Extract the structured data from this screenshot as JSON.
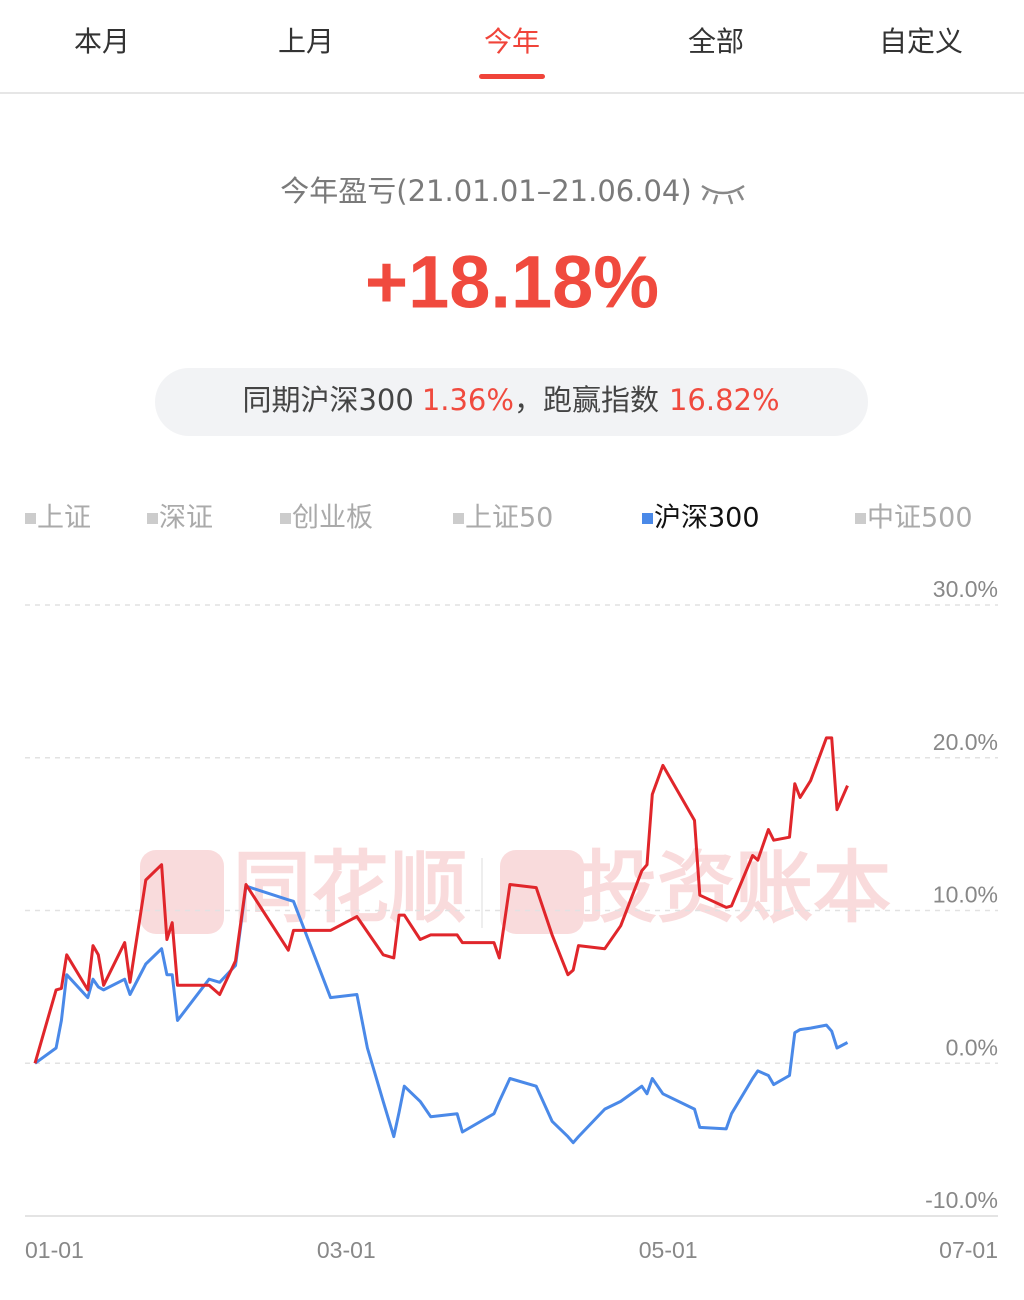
{
  "tabs": {
    "items": [
      "本月",
      "上月",
      "今年",
      "全部",
      "自定义"
    ],
    "active": 2
  },
  "header": {
    "period": "今年盈亏(21.01.01–21.06.04)",
    "return": "+18.18%",
    "compare_prefix": "同期沪深300",
    "compare_value": "1.36%",
    "compare_middle": "，跑赢指数",
    "excess_value": "16.82%"
  },
  "legend": [
    {
      "label": "上证",
      "color": "#cccccc",
      "active": false
    },
    {
      "label": "深证",
      "color": "#cccccc",
      "active": false
    },
    {
      "label": "创业板",
      "color": "#cccccc",
      "active": false
    },
    {
      "label": "上证50",
      "color": "#cccccc",
      "active": false
    },
    {
      "label": "沪深300",
      "color": "#4a89e8",
      "active": true
    },
    {
      "label": "中证500",
      "color": "#cccccc",
      "active": false
    }
  ],
  "watermark": {
    "left": "同花顺",
    "right": "投资账本"
  },
  "chart_data": {
    "type": "line",
    "x": [
      "01-01",
      "01-05",
      "01-06",
      "01-07",
      "01-11",
      "01-12",
      "01-13",
      "01-14",
      "01-18",
      "01-19",
      "01-22",
      "01-25",
      "01-26",
      "01-27",
      "01-28",
      "02-03",
      "02-05",
      "02-08",
      "02-10",
      "02-18",
      "02-19",
      "02-26",
      "03-03",
      "03-05",
      "03-08",
      "03-10",
      "03-11",
      "03-12",
      "03-15",
      "03-17",
      "03-22",
      "03-23",
      "03-29",
      "03-30",
      "04-01",
      "04-06",
      "04-09",
      "04-12",
      "04-13",
      "04-14",
      "04-19",
      "04-22",
      "04-26",
      "04-27",
      "04-28",
      "04-30",
      "05-06",
      "05-07",
      "05-12",
      "05-13",
      "05-17",
      "05-18",
      "05-20",
      "05-21",
      "05-24",
      "05-25",
      "05-26",
      "05-28",
      "05-31",
      "06-01",
      "06-02",
      "06-04"
    ],
    "series": [
      {
        "color": "#e0262b",
        "values": [
          0,
          4.8,
          4.9,
          7.1,
          4.8,
          7.7,
          7.1,
          5.1,
          7.9,
          5.3,
          12.0,
          13.0,
          8.1,
          9.2,
          5.1,
          5.1,
          4.5,
          6.7,
          11.7,
          7.4,
          8.7,
          8.7,
          9.6,
          8.6,
          7.1,
          6.9,
          9.7,
          9.7,
          8.1,
          8.4,
          8.4,
          7.9,
          7.9,
          6.9,
          11.7,
          11.5,
          8.4,
          5.8,
          6.1,
          7.7,
          7.5,
          9.0,
          12.6,
          13.0,
          17.6,
          19.5,
          15.9,
          11.0,
          10.2,
          10.3,
          13.6,
          13.3,
          15.3,
          14.6,
          14.8,
          18.3,
          17.4,
          18.5,
          21.3,
          21.3,
          16.6,
          18.18
        ]
      },
      {
        "name": "沪深300",
        "color": "#4a89e8",
        "values": [
          0,
          1.0,
          2.8,
          5.8,
          4.3,
          5.5,
          5.0,
          4.8,
          5.5,
          4.5,
          6.5,
          7.5,
          5.8,
          5.8,
          2.8,
          5.5,
          5.3,
          6.4,
          11.6,
          10.7,
          10.6,
          4.3,
          4.5,
          1.0,
          -2.5,
          -4.8,
          -3.2,
          -1.5,
          -2.5,
          -3.5,
          -3.3,
          -4.5,
          -3.3,
          -2.5,
          -1.0,
          -1.5,
          -3.8,
          -4.8,
          -5.2,
          -4.8,
          -3.0,
          -2.5,
          -1.5,
          -2.0,
          -1.0,
          -2.0,
          -3.0,
          -4.2,
          -4.3,
          -3.3,
          -1.0,
          -0.5,
          -0.8,
          -1.4,
          -0.8,
          2.0,
          2.2,
          2.3,
          2.5,
          2.1,
          1.0,
          1.36
        ]
      }
    ],
    "xlim": [
      "01-01",
      "07-01"
    ],
    "xticks": [
      "01-01",
      "03-01",
      "05-01",
      "07-01"
    ],
    "ylim": [
      -10,
      30
    ],
    "yticks": [
      {
        "value": -10,
        "label": "-10.0%"
      },
      {
        "value": 0,
        "label": "0.0%"
      },
      {
        "value": 10,
        "label": "10.0%"
      },
      {
        "value": 20,
        "label": "20.0%"
      },
      {
        "value": 30,
        "label": "30.0%"
      }
    ],
    "grid": true
  }
}
